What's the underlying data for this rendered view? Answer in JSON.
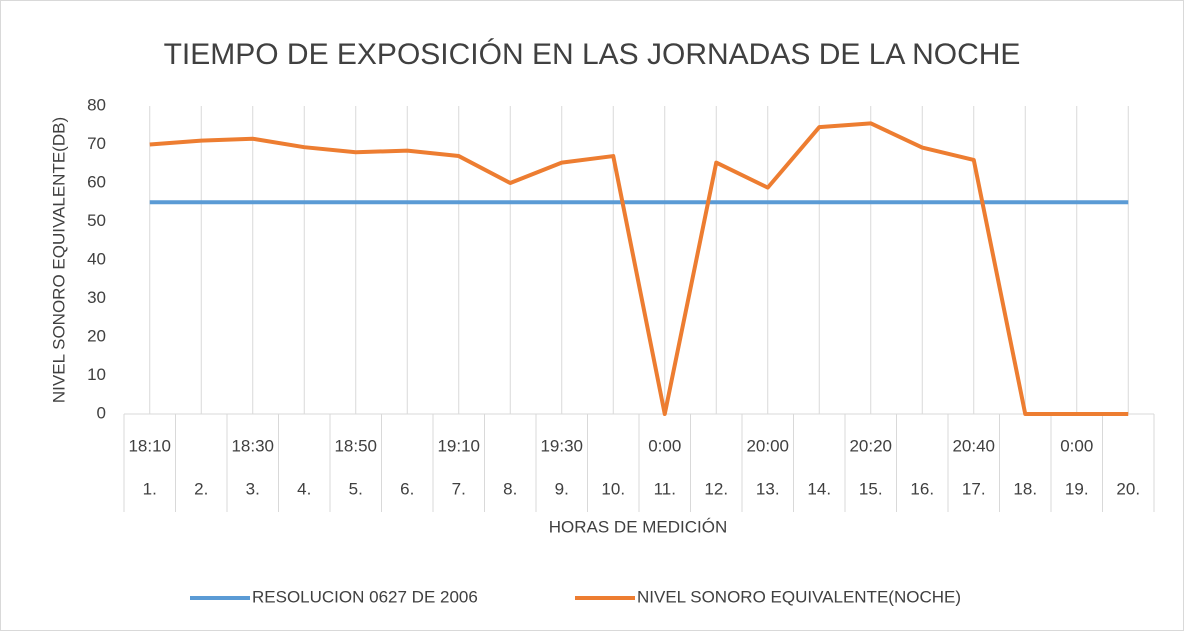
{
  "chart_data": {
    "type": "line",
    "title": "TIEMPO DE EXPOSICIÓN EN LAS JORNADAS DE LA NOCHE",
    "x_label": "HORAS DE MEDICIÓN",
    "y_label": "NIVEL SONORO EQUIVALENTE(DB)",
    "categories": [
      "1.",
      "2.",
      "3.",
      "4.",
      "5.",
      "6.",
      "7.",
      "8.",
      "9.",
      "10.",
      "11.",
      "12.",
      "13.",
      "14.",
      "15.",
      "16.",
      "17.",
      "18.",
      "19.",
      "20."
    ],
    "time_labels": [
      "18:10",
      null,
      "18:30",
      null,
      "18:50",
      null,
      "19:10",
      null,
      "19:30",
      null,
      "0:00",
      null,
      "20:00",
      null,
      "20:20",
      null,
      "20:40",
      null,
      "0:00",
      null
    ],
    "series": [
      {
        "name": "RESOLUCION 0627 DE 2006",
        "color": "#5b9bd5",
        "values": [
          55,
          55,
          55,
          55,
          55,
          55,
          55,
          55,
          55,
          55,
          55,
          55,
          55,
          55,
          55,
          55,
          55,
          55,
          55,
          55
        ]
      },
      {
        "name": "NIVEL SONORO EQUIVALENTE(NOCHE)",
        "color": "#ed7d31",
        "values": [
          70,
          71,
          71.5,
          69.3,
          68,
          68.4,
          67,
          60,
          65.3,
          67,
          0,
          65.3,
          58.8,
          74.5,
          75.5,
          69.2,
          66,
          0,
          0,
          0
        ]
      }
    ],
    "ylim": [
      0,
      80
    ],
    "yticks": [
      0,
      10,
      20,
      30,
      40,
      50,
      60,
      70,
      80
    ],
    "grid": "x",
    "legend": "bottom"
  }
}
